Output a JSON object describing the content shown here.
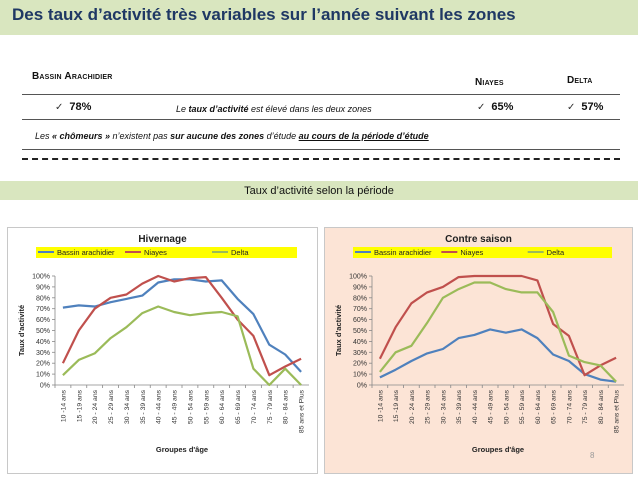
{
  "header": {
    "title": "Des taux d’activité très variables sur l’année suivant les zones"
  },
  "table": {
    "col1": "Bassin Arachidier",
    "col2": "Niayes",
    "col3": "Delta",
    "v1": "78%",
    "v2": "65%",
    "v3": "57%",
    "check": "✓",
    "note_prefix": "Le ",
    "note_bold": "taux d’activité",
    "note_suffix": " est  élevé dans les deux zones",
    "bottom_a": "Les ",
    "bottom_b": "« chômeurs »",
    "bottom_c": " n’existent pas ",
    "bottom_d": "sur aucune des zones",
    "bottom_e": "  d’étude ",
    "bottom_f": "au cours de la période d’étude"
  },
  "subtitle": "Taux d’activité selon la période",
  "page_number": "8",
  "chart_data": [
    {
      "type": "line",
      "title": "Hivernage",
      "xlabel": "Groupes d'âge",
      "ylabel": "Taux d'activité",
      "ylim": [
        0,
        100
      ],
      "yticks": [
        "0%",
        "10%",
        "20%",
        "30%",
        "40%",
        "50%",
        "60%",
        "70%",
        "80%",
        "90%",
        "100%"
      ],
      "categories": [
        "10 -14 ans",
        "15 -19 ans",
        "20 - 24 ans",
        "25 - 29 ans",
        "30 - 34 ans",
        "35 - 39 ans",
        "40 - 44 ans",
        "45 - 49 ans",
        "50 - 54 ans",
        "55 - 59 ans",
        "60 - 64 ans",
        "65 - 69 ans",
        "70 - 74 ans",
        "75 - 79 ans",
        "80 - 84 ans",
        "85 ans et Plus"
      ],
      "legend_position": "top",
      "grid": false,
      "series": [
        {
          "name": "Bassin arachidier",
          "color": "#4f81bd",
          "values": [
            71,
            73,
            72,
            76,
            79,
            82,
            94,
            97,
            97,
            95,
            96,
            79,
            65,
            37,
            28,
            12
          ]
        },
        {
          "name": "Niayes",
          "color": "#c0504d",
          "values": [
            20,
            50,
            70,
            80,
            83,
            93,
            100,
            95,
            98,
            99,
            80,
            60,
            45,
            9,
            17,
            24
          ]
        },
        {
          "name": "Delta",
          "color": "#9bbb59",
          "values": [
            9,
            23,
            29,
            43,
            53,
            66,
            72,
            67,
            64,
            66,
            67,
            63,
            15,
            0,
            15,
            0
          ]
        }
      ]
    },
    {
      "type": "line",
      "title": "Contre saison",
      "xlabel": "Groupes d'âge",
      "ylabel": "Taux d'activité",
      "ylim": [
        0,
        100
      ],
      "yticks": [
        "0%",
        "10%",
        "20%",
        "30%",
        "40%",
        "50%",
        "60%",
        "70%",
        "80%",
        "90%",
        "100%"
      ],
      "categories": [
        "10 -14 ans",
        "15 -19 ans",
        "20 - 24 ans",
        "25 - 29 ans",
        "30 - 34 ans",
        "35 - 39 ans",
        "40 - 44 ans",
        "45 - 49 ans",
        "50 - 54 ans",
        "55 - 59 ans",
        "60 - 64 ans",
        "65 - 69 ans",
        "70 - 74 ans",
        "75 - 79 ans",
        "80 - 84 ans",
        "85 ans et Plus"
      ],
      "legend_position": "top",
      "grid": false,
      "series": [
        {
          "name": "Bassin arachidier",
          "color": "#4f81bd",
          "values": [
            7,
            14,
            22,
            29,
            33,
            43,
            46,
            51,
            48,
            51,
            43,
            28,
            22,
            10,
            5,
            3
          ]
        },
        {
          "name": "Niayes",
          "color": "#c0504d",
          "values": [
            24,
            53,
            75,
            85,
            90,
            99,
            100,
            100,
            100,
            100,
            96,
            56,
            45,
            9,
            18,
            25
          ]
        },
        {
          "name": "Delta",
          "color": "#9bbb59",
          "values": [
            12,
            30,
            36,
            57,
            80,
            88,
            94,
            94,
            88,
            85,
            85,
            67,
            27,
            21,
            18,
            3
          ]
        }
      ]
    }
  ]
}
